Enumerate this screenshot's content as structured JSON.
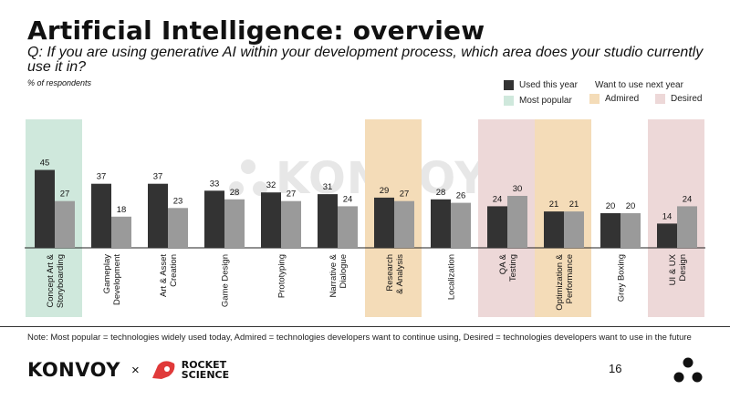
{
  "header": {
    "title": "Artificial Intelligence: overview",
    "question": "Q: If you are using generative AI within your development process, which area does your studio currently use it in?",
    "unit": "% of respondents"
  },
  "legend": {
    "used": "Used this year",
    "want": "Want to use next year",
    "most_popular": "Most popular",
    "admired": "Admired",
    "desired": "Desired"
  },
  "watermark": "KONVOY",
  "footer": {
    "note": "Note: Most popular = technologies widely used today, Admired = technologies developers want to continue using, Desired = technologies developers want to use in the future",
    "brand": "KONVOY",
    "separator": "×",
    "partner_line1": "ROCKET",
    "partner_line2": "SCIENCE",
    "page": "16"
  },
  "colors": {
    "used": "#333333",
    "want": "#9a9a9a",
    "most_popular": "#cfe8dc",
    "admired": "#f4dcb8",
    "desired": "#edd8d8",
    "accent": "#e03a3a"
  },
  "chart_data": {
    "type": "bar",
    "title": "Artificial Intelligence: overview",
    "ylabel": "% of respondents",
    "categories": [
      {
        "lines": [
          "Concept Art &",
          "Storyboarding"
        ],
        "highlight": "most_popular"
      },
      {
        "lines": [
          "Gameplay",
          "Development"
        ],
        "highlight": null
      },
      {
        "lines": [
          "Art & Asset",
          "Creation"
        ],
        "highlight": null
      },
      {
        "lines": [
          "Game Design"
        ],
        "highlight": null
      },
      {
        "lines": [
          "Prototyping"
        ],
        "highlight": null
      },
      {
        "lines": [
          "Narrative &",
          "Dialogue"
        ],
        "highlight": null
      },
      {
        "lines": [
          "Research",
          "& Analysis"
        ],
        "highlight": "admired"
      },
      {
        "lines": [
          "Localization"
        ],
        "highlight": null
      },
      {
        "lines": [
          "QA &",
          "Testing"
        ],
        "highlight": "desired"
      },
      {
        "lines": [
          "Optimization &",
          "Performance"
        ],
        "highlight": "admired"
      },
      {
        "lines": [
          "Grey Boxing"
        ],
        "highlight": null
      },
      {
        "lines": [
          "UI & UX",
          "Design"
        ],
        "highlight": "desired"
      }
    ],
    "series": [
      {
        "name": "Used this year",
        "values": [
          45,
          37,
          37,
          33,
          32,
          31,
          29,
          28,
          24,
          21,
          20,
          14
        ]
      },
      {
        "name": "Want to use next year",
        "values": [
          27,
          18,
          23,
          28,
          27,
          24,
          27,
          26,
          30,
          21,
          20,
          24
        ]
      }
    ],
    "ylim": [
      0,
      60
    ]
  }
}
